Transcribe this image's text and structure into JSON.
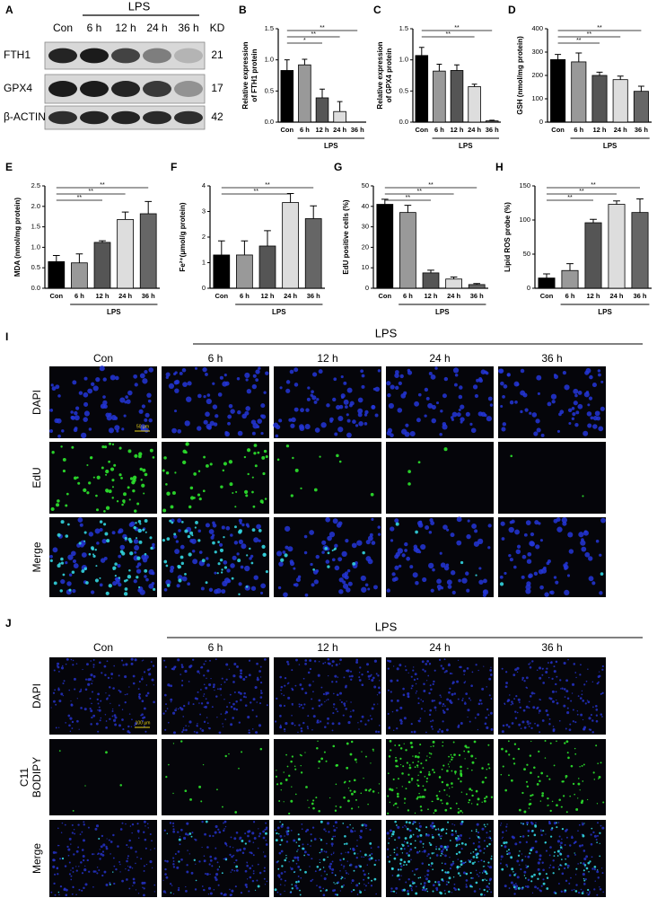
{
  "chart_data": [
    {
      "type": "bar",
      "panel": "B",
      "ylabel": [
        "Relative expression",
        "of FTH1 protein"
      ],
      "categories": [
        "Con",
        "6 h",
        "12 h",
        "24 h",
        "36 h"
      ],
      "values": [
        0.83,
        0.92,
        0.39,
        0.17,
        0
      ],
      "errors": [
        0.17,
        0.09,
        0.14,
        0.16,
        0
      ],
      "colors": [
        "#000000",
        "#999999",
        "#555555",
        "#dddddd",
        "#666666"
      ],
      "ylim": [
        0,
        1.5
      ],
      "yticks": [
        {
          "value": 0,
          "label": "0.0"
        },
        0.5,
        {
          "value": 1,
          "label": "1.0"
        },
        1.5
      ],
      "comparisons": [
        {
          "from": "Con",
          "to": "12 h",
          "label": "*"
        },
        {
          "from": "Con",
          "to": "24 h",
          "label": "**"
        },
        {
          "from": "Con",
          "to": "36 h",
          "label": "**"
        }
      ],
      "group_label": "LPS"
    },
    {
      "type": "bar",
      "panel": "C",
      "ylabel": [
        "Relative expression",
        "of GPX4 protein"
      ],
      "categories": [
        "Con",
        "6 h",
        "12 h",
        "24 h",
        "36 h"
      ],
      "values": [
        1.07,
        0.82,
        0.83,
        0.57,
        0.02
      ],
      "errors": [
        0.13,
        0.11,
        0.09,
        0.04,
        0.01
      ],
      "colors": [
        "#000000",
        "#999999",
        "#555555",
        "#dddddd",
        "#666666"
      ],
      "ylim": [
        0,
        1.5
      ],
      "yticks": [
        {
          "value": 0,
          "label": "0.0"
        },
        0.5,
        {
          "value": 1,
          "label": "1.0"
        },
        1.5
      ],
      "comparisons": [
        {
          "from": "Con",
          "to": "24 h",
          "label": "**"
        },
        {
          "from": "Con",
          "to": "36 h",
          "label": "**"
        }
      ],
      "group_label": "LPS"
    },
    {
      "type": "bar",
      "panel": "D",
      "ylabel": [
        "GSH (nmol/mg protein)"
      ],
      "categories": [
        "Con",
        "6 h",
        "12 h",
        "24 h",
        "36 h"
      ],
      "values": [
        268,
        258,
        200,
        182,
        132
      ],
      "errors": [
        22,
        38,
        14,
        15,
        22
      ],
      "colors": [
        "#000000",
        "#999999",
        "#555555",
        "#dddddd",
        "#666666"
      ],
      "ylim": [
        0,
        400
      ],
      "yticks": [
        0,
        100,
        200,
        300,
        400
      ],
      "comparisons": [
        {
          "from": "Con",
          "to": "12 h",
          "label": "**"
        },
        {
          "from": "Con",
          "to": "24 h",
          "label": "**"
        },
        {
          "from": "Con",
          "to": "36 h",
          "label": "**"
        }
      ],
      "group_label": "LPS"
    },
    {
      "type": "bar",
      "panel": "E",
      "ylabel": [
        "MDA (nmol/mg protein)"
      ],
      "categories": [
        "Con",
        "6 h",
        "12 h",
        "24 h",
        "36 h"
      ],
      "values": [
        0.65,
        0.62,
        1.12,
        1.68,
        1.82
      ],
      "errors": [
        0.15,
        0.22,
        0.04,
        0.18,
        0.3
      ],
      "colors": [
        "#000000",
        "#999999",
        "#555555",
        "#dddddd",
        "#666666"
      ],
      "ylim": [
        0,
        2.5
      ],
      "yticks": [
        {
          "value": 0,
          "label": "0.0"
        },
        0.5,
        {
          "value": 1,
          "label": "1.0"
        },
        1.5,
        {
          "value": 2,
          "label": "2.0"
        },
        2.5
      ],
      "comparisons": [
        {
          "from": "Con",
          "to": "12 h",
          "label": "**"
        },
        {
          "from": "Con",
          "to": "24 h",
          "label": "**"
        },
        {
          "from": "Con",
          "to": "36 h",
          "label": "**"
        }
      ],
      "group_label": "LPS"
    },
    {
      "type": "bar",
      "panel": "F",
      "ylabel": [
        "Fe²⁺(μmol/g protein)"
      ],
      "categories": [
        "Con",
        "6 h",
        "12 h",
        "24 h",
        "36 h"
      ],
      "values": [
        1.3,
        1.3,
        1.65,
        3.35,
        2.72
      ],
      "errors": [
        0.55,
        0.55,
        0.6,
        0.35,
        0.5
      ],
      "colors": [
        "#000000",
        "#999999",
        "#555555",
        "#dddddd",
        "#666666"
      ],
      "ylim": [
        0,
        4
      ],
      "yticks": [
        0,
        1,
        2,
        3,
        4
      ],
      "comparisons": [
        {
          "from": "Con",
          "to": "24 h",
          "label": "**"
        },
        {
          "from": "Con",
          "to": "36 h",
          "label": "**"
        }
      ],
      "group_label": "LPS"
    },
    {
      "type": "bar",
      "panel": "G",
      "ylabel": [
        "EdU positive cells (%)"
      ],
      "categories": [
        "Con",
        "6 h",
        "12 h",
        "24 h",
        "36 h"
      ],
      "values": [
        41,
        37,
        7.5,
        4.5,
        1.8
      ],
      "errors": [
        2.5,
        3.5,
        1.3,
        1,
        0.5
      ],
      "colors": [
        "#000000",
        "#999999",
        "#555555",
        "#dddddd",
        "#666666"
      ],
      "ylim": [
        0,
        50
      ],
      "yticks": [
        0,
        10,
        20,
        30,
        40,
        50
      ],
      "comparisons": [
        {
          "from": "Con",
          "to": "12 h",
          "label": "**"
        },
        {
          "from": "Con",
          "to": "24 h",
          "label": "**"
        },
        {
          "from": "Con",
          "to": "36 h",
          "label": "**"
        }
      ],
      "group_label": "LPS"
    },
    {
      "type": "bar",
      "panel": "H",
      "ylabel": [
        "Lipid ROS probe (%)"
      ],
      "categories": [
        "Con",
        "6 h",
        "12 h",
        "24 h",
        "36 h"
      ],
      "values": [
        15,
        26,
        96,
        123,
        111
      ],
      "errors": [
        6,
        10,
        5,
        5,
        20
      ],
      "colors": [
        "#000000",
        "#999999",
        "#555555",
        "#dddddd",
        "#666666"
      ],
      "ylim": [
        0,
        150
      ],
      "yticks": [
        0,
        50,
        100,
        150
      ],
      "comparisons": [
        {
          "from": "Con",
          "to": "12 h",
          "label": "**"
        },
        {
          "from": "Con",
          "to": "24 h",
          "label": "**"
        },
        {
          "from": "Con",
          "to": "36 h",
          "label": "**"
        }
      ],
      "group_label": "LPS"
    }
  ],
  "blot": {
    "panel": "A",
    "group_label": "LPS",
    "lanes": [
      "Con",
      "6 h",
      "12 h",
      "24 h",
      "36 h"
    ],
    "unit": "KD",
    "rows": [
      {
        "protein": "FTH1",
        "kd": "21"
      },
      {
        "protein": "GPX4",
        "kd": "17"
      },
      {
        "protein": "β-ACTIN",
        "kd": "42"
      }
    ]
  },
  "panel_I": {
    "panel": "I",
    "group_label": "LPS",
    "columns": [
      "Con",
      "6 h",
      "12 h",
      "24 h",
      "36 h"
    ],
    "rows": [
      [
        "DAPI"
      ],
      [
        "EdU"
      ],
      [
        "Merge"
      ]
    ],
    "scale_bar": "50 μm"
  },
  "panel_J": {
    "panel": "J",
    "group_label": "LPS",
    "columns": [
      "Con",
      "6 h",
      "12 h",
      "24 h",
      "36 h"
    ],
    "rows": [
      [
        "DAPI"
      ],
      [
        "C11",
        "BODIPY"
      ],
      [
        "Merge"
      ]
    ],
    "scale_bar": "100 μm"
  }
}
